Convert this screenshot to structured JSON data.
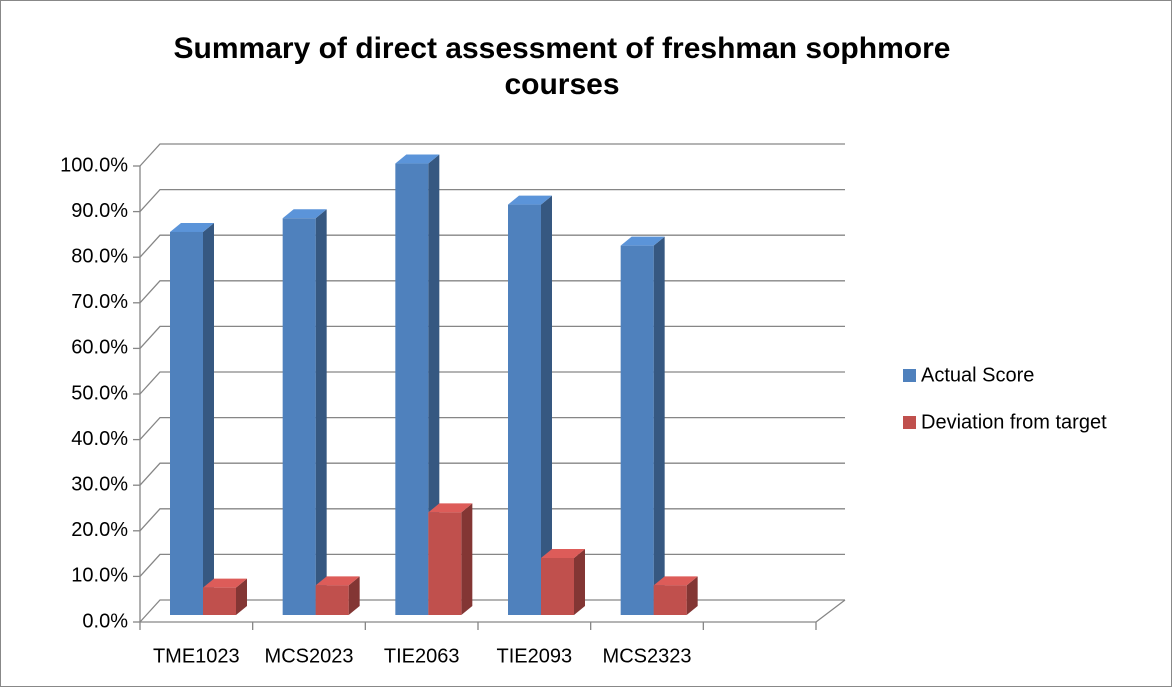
{
  "chart_data": {
    "type": "bar3d",
    "title": "Summary of direct assessment  of freshman sophmore courses",
    "categories": [
      "TME1023",
      "MCS2023",
      "TIE2063",
      "TIE2093",
      "MCS2323",
      null
    ],
    "series": [
      {
        "name": "Actual Score",
        "color": "#4f81bd",
        "values": [
          84,
          87,
          99,
          90,
          81,
          null
        ]
      },
      {
        "name": "Deviation from target",
        "color": "#c0504d",
        "values": [
          6,
          6.5,
          22.5,
          12.5,
          6.5,
          null
        ]
      }
    ],
    "ylim": [
      0,
      100
    ],
    "yticks": [
      {
        "value": 0,
        "label": "0.0%"
      },
      {
        "value": 10,
        "label": "10.0%"
      },
      {
        "value": 20,
        "label": "20.0%"
      },
      {
        "value": 30,
        "label": "30.0%"
      },
      {
        "value": 40,
        "label": "40.0%"
      },
      {
        "value": 50,
        "label": "50.0%"
      },
      {
        "value": 60,
        "label": "60.0%"
      },
      {
        "value": 70,
        "label": "70.0%"
      },
      {
        "value": 80,
        "label": "80.0%"
      },
      {
        "value": 90,
        "label": "90.0%"
      },
      {
        "value": 100,
        "label": "100.0%"
      }
    ],
    "grid": true,
    "legend": "right"
  }
}
